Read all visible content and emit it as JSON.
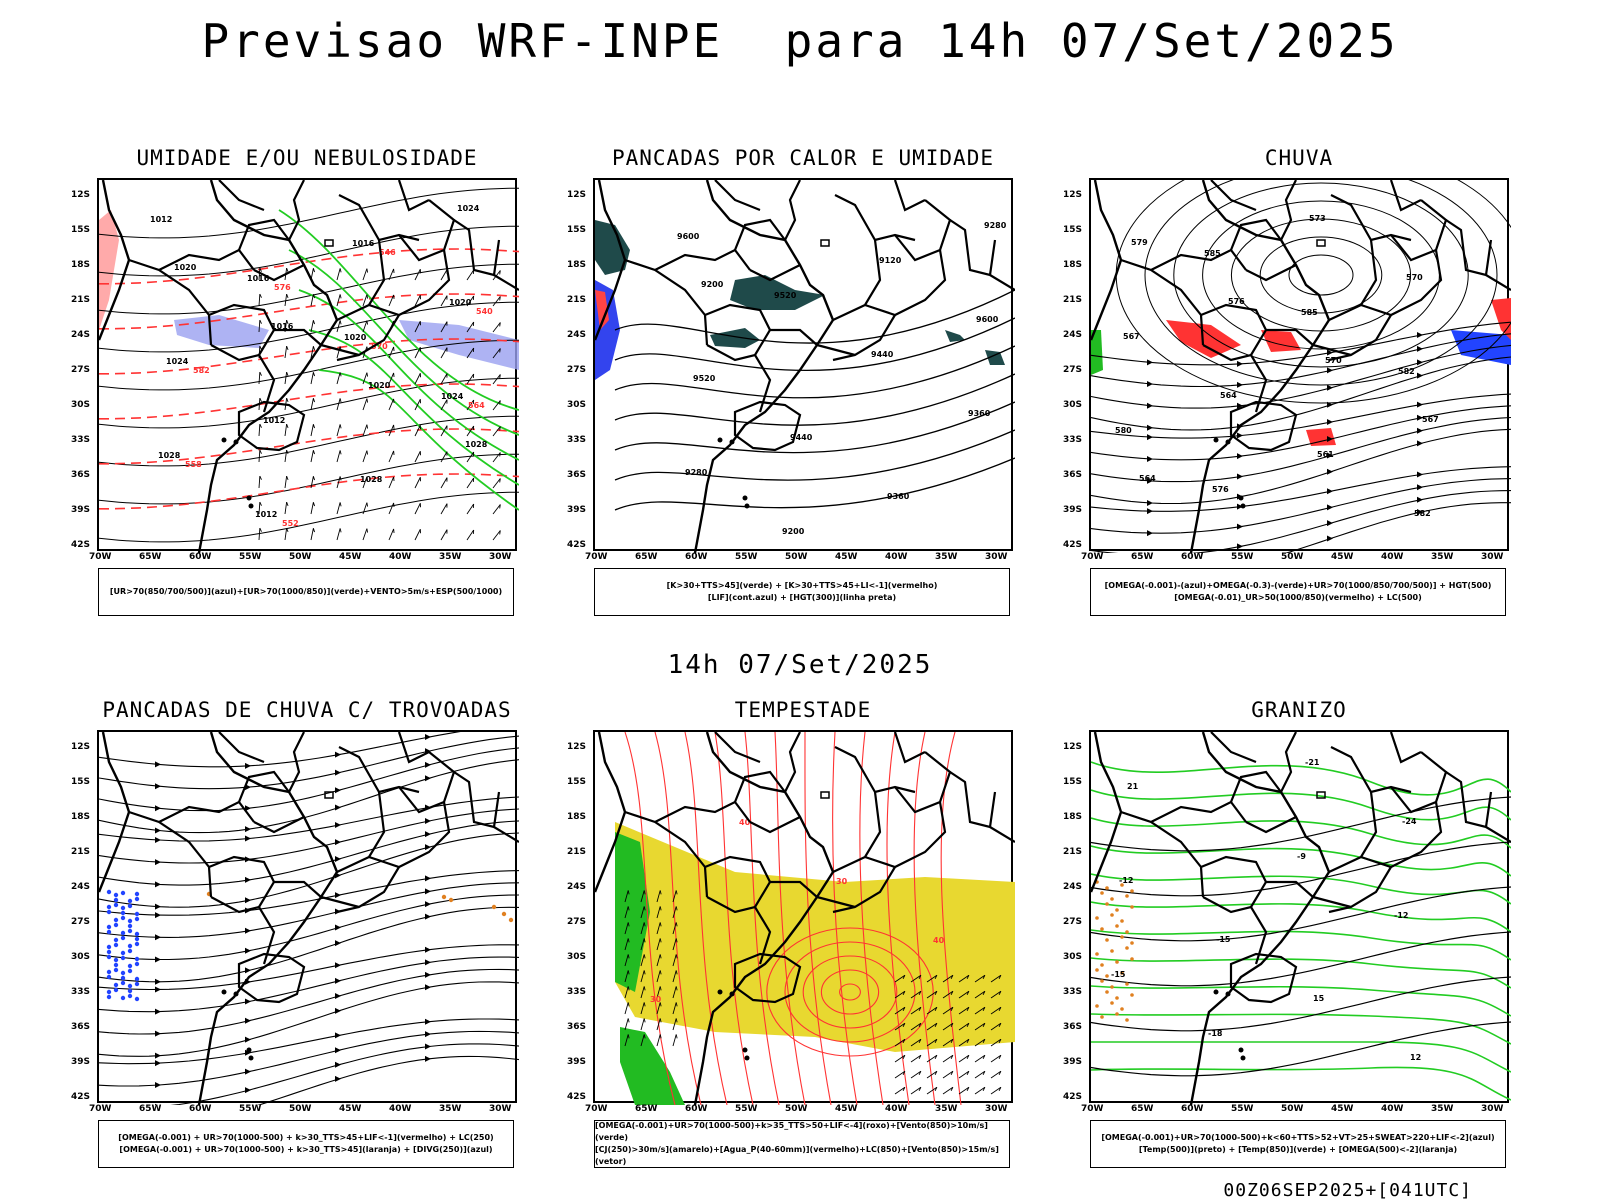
{
  "header": {
    "title": "Previsao WRF-INPE  para 14h 07/Set/2025",
    "middle_time": "14h 07/Set/2025",
    "footer_run": "00Z06SEP2025+[041UTC]"
  },
  "axes": {
    "lat_labels": [
      "12S",
      "15S",
      "18S",
      "21S",
      "24S",
      "27S",
      "30S",
      "33S",
      "36S",
      "39S",
      "42S"
    ],
    "lon_labels": [
      "70W",
      "65W",
      "60W",
      "55W",
      "50W",
      "45W",
      "40W",
      "35W",
      "30W"
    ]
  },
  "panels": [
    {
      "id": "umidade",
      "title": "UMIDADE E/OU NEBULOSIDADE",
      "legend": [
        "[UR>70(850/700/500)](azul)+[UR>70(1000/850)](verde)+VENTO>5m/s+ESP(500/1000)"
      ],
      "contour_labels": [
        "1012",
        "1016",
        "1020",
        "1024",
        "1028",
        "1012",
        "1016",
        "1020",
        "1024",
        "1012",
        "1028",
        "1024",
        "1020",
        "1016",
        "1020",
        "1028"
      ],
      "red_labels": [
        "576",
        "570",
        "564",
        "558",
        "552",
        "546",
        "540",
        "582"
      ]
    },
    {
      "id": "pancadas-calor",
      "title": "PANCADAS POR CALOR E UMIDADE",
      "legend": [
        "[K>30+TTS>45](verde) + [K>30+TTS>45+LI<-1](vermelho)",
        "[LIF](cont.azul) + [HGT(300)](linha preta)"
      ],
      "contour_labels": [
        "9600",
        "9520",
        "9440",
        "9360",
        "9280",
        "9200",
        "9120",
        "9600",
        "9520",
        "9440",
        "9360",
        "9280",
        "9200"
      ]
    },
    {
      "id": "chuva",
      "title": "CHUVA",
      "legend": [
        "[OMEGA(-0.001)-(azul)+OMEGA(-0.3)-(verde)+UR>70(1000/850/700/500)] + HGT(500)",
        "[OMEGA(-0.01)_UR>50(1000/850)(vermelho) + LC(500)"
      ],
      "contour_labels": [
        "585",
        "585",
        "582",
        "580",
        "576",
        "573",
        "570",
        "567",
        "564",
        "561",
        "582",
        "579",
        "576",
        "570",
        "567",
        "564"
      ]
    },
    {
      "id": "pancadas-trovoadas",
      "title": "PANCADAS DE CHUVA C/ TROVOADAS",
      "legend": [
        "[OMEGA(-0.001) + UR>70(1000-500) + k>30_TTS>45+LIF<-1](vermelho) + LC(250)",
        "[OMEGA(-0.001) + UR>70(1000-500) + k>30_TTS>45](laranja) + [DIVG(250)](azul)"
      ]
    },
    {
      "id": "tempestade",
      "title": "TEMPESTADE",
      "legend": [
        "[OMEGA(-0.001)+UR>70(1000-500)+k>35_TTS>50+LIF<-4](roxo)+[Vento(850)>10m/s](verde)",
        "[CJ(250)>30m/s](amarelo)+[Agua_P(40-60mm)](vermelho)+LC(850)+[Vento(850)>15m/s](vetor)"
      ],
      "contour_labels": [
        "40",
        "30",
        "40",
        "30"
      ]
    },
    {
      "id": "granizo",
      "title": "GRANIZO",
      "legend": [
        "[OMEGA(-0.001)+UR>70(1000-500)+k<60+TTS>52+VT>25+SWEAT>220+LIF<-2](azul)",
        "[Temp(500)](preto) + [Temp(850)](verde) + [OMEGA(500)<-2](laranja)"
      ],
      "contour_labels": [
        "-9",
        "-12",
        "-15",
        "-18",
        "-21",
        "-24",
        "-12",
        "-15",
        "15",
        "12",
        "21"
      ]
    }
  ],
  "colors": {
    "blue_shade": "#9aa0f0",
    "green_line": "#22cc22",
    "red_line": "#ff3333",
    "dark_teal": "#1f4a4a",
    "yellow": "#e8d830",
    "orange": "#e08020",
    "blue_dot": "#2244ff"
  }
}
